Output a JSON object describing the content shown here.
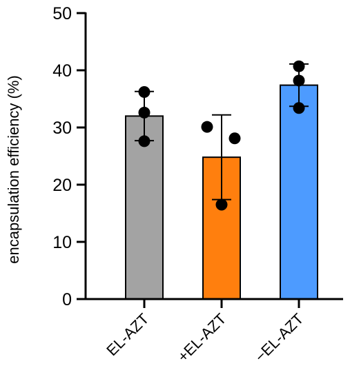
{
  "chart_data": {
    "type": "bar",
    "title": "",
    "xlabel": "",
    "ylabel": "encapsulation efficiency (%)",
    "ylim": [
      0,
      50
    ],
    "yticks": [
      0,
      10,
      20,
      30,
      40,
      50
    ],
    "grid": false,
    "legend": "none",
    "categories": [
      "EL-AZT",
      "+EL-AZT",
      "−EL-AZT"
    ],
    "values": [
      32.0,
      24.8,
      37.4
    ],
    "error": [
      4.3,
      7.4,
      3.7
    ],
    "points": [
      [
        36.2,
        32.6,
        27.6
      ],
      [
        30.1,
        28.1,
        16.5
      ],
      [
        40.7,
        38.2,
        33.4
      ]
    ],
    "colors": [
      "#a3a3a3",
      "#ff7f0e",
      "#4d9bff"
    ]
  }
}
